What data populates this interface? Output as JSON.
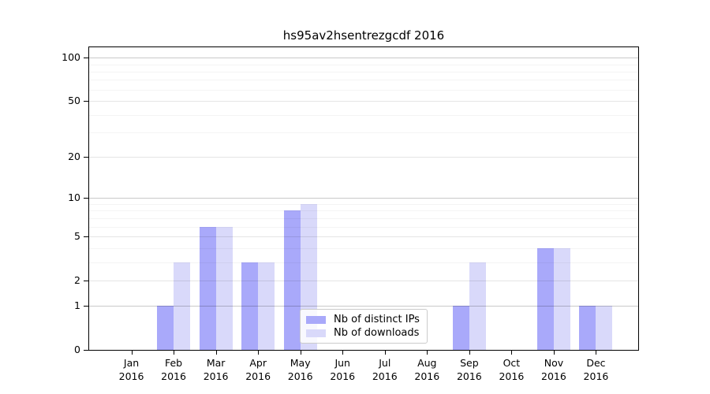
{
  "figure": {
    "title": "hs95av2hsentrezgcdf 2016"
  },
  "chart_data": {
    "type": "bar",
    "title": "hs95av2hsentrezgcdf 2016",
    "categories": [
      "Jan\n2016",
      "Feb\n2016",
      "Mar\n2016",
      "Apr\n2016",
      "May\n2016",
      "Jun\n2016",
      "Jul\n2016",
      "Aug\n2016",
      "Sep\n2016",
      "Oct\n2016",
      "Nov\n2016",
      "Dec\n2016"
    ],
    "series": [
      {
        "name": "Nb of distinct IPs",
        "color": "#a9a9fa",
        "values": [
          0,
          1,
          6,
          3,
          8,
          0,
          0,
          0,
          1,
          0,
          4,
          1
        ]
      },
      {
        "name": "Nb of downloads",
        "color": "#d9d9fa",
        "values": [
          0,
          3,
          6,
          3,
          9,
          0,
          0,
          0,
          3,
          0,
          4,
          1
        ]
      }
    ],
    "xlabel": "",
    "ylabel": "",
    "yscale": "log1p",
    "ylim": [
      0,
      118
    ],
    "y_ticks": [
      0,
      1,
      2,
      5,
      10,
      20,
      50,
      100
    ],
    "y_strong_gridlines": [
      1,
      10,
      100
    ],
    "y_minor_ticks": [
      3,
      4,
      6,
      7,
      8,
      9,
      30,
      40,
      60,
      70,
      80,
      90
    ],
    "grid": true,
    "legend_position": "lower center",
    "colors": {
      "distinct_ips": "#a9a9fa",
      "downloads": "#d9d9fa",
      "spine": "#000000",
      "grid_strong": "rgba(0,0,0,0.21)",
      "grid_major": "rgba(0,0,0,0.10)",
      "grid_minor": "rgba(0,0,0,0.045)"
    }
  }
}
